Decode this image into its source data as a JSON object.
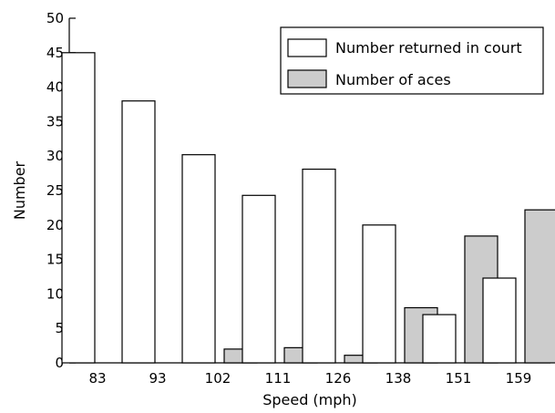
{
  "chart_data": {
    "type": "bar",
    "title": "",
    "xlabel": "Speed (mph)",
    "ylabel": "Number",
    "categories": [
      "83",
      "93",
      "102",
      "111",
      "126",
      "138",
      "151",
      "159"
    ],
    "series": [
      {
        "name": "Number returned in court",
        "values": [
          45,
          38,
          30.2,
          24.3,
          28.1,
          20,
          7,
          12.3
        ],
        "color": "#ffffff"
      },
      {
        "name": "Number of aces",
        "values": [
          0,
          0,
          2,
          2.2,
          1.1,
          8,
          18.4,
          22.2
        ],
        "color": "#cccccc"
      }
    ],
    "ylim": [
      0,
      50
    ],
    "yticks": [
      0,
      5,
      10,
      15,
      20,
      25,
      30,
      35,
      40,
      45,
      50
    ],
    "grid": false,
    "legend_position": "top-right"
  }
}
